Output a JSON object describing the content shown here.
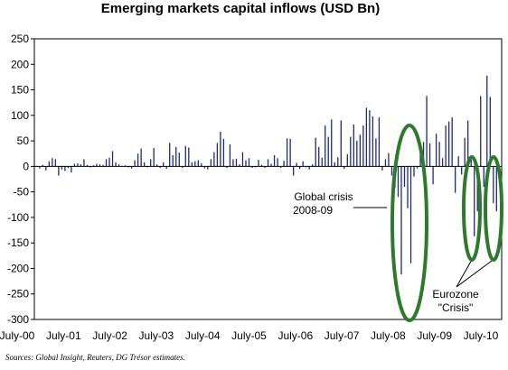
{
  "chart_data": {
    "type": "bar",
    "title": "Emerging markets capital inflows (USD Bn)",
    "source": "Sources: Global Insight, Reuters, DG Trésor estimates.",
    "ylim": [
      -300,
      250
    ],
    "yticks": [
      250,
      200,
      150,
      100,
      50,
      0,
      -50,
      -100,
      -150,
      -200,
      -250,
      -300
    ],
    "xlabels": [
      "July-00",
      "July-01",
      "July-02",
      "July-03",
      "July-04",
      "July-05",
      "July-06",
      "July-07",
      "July-08",
      "July-09",
      "July-10"
    ],
    "period_start": "2000-07",
    "period_step": "week",
    "bar_color": "#1f2a7a",
    "values": [
      -4,
      3,
      -8,
      10,
      16,
      14,
      -18,
      -6,
      -9,
      -3,
      -12,
      5,
      6,
      4,
      14,
      3,
      -2,
      2,
      5,
      4,
      3,
      14,
      17,
      30,
      8,
      4,
      1,
      2,
      -2,
      -4,
      12,
      25,
      35,
      8,
      -2,
      14,
      36,
      4,
      -3,
      8,
      -5,
      46,
      22,
      38,
      27,
      -3,
      40,
      37,
      8,
      10,
      12,
      6,
      -4,
      -6,
      14,
      28,
      46,
      68,
      54,
      -3,
      43,
      14,
      15,
      4,
      28,
      12,
      16,
      -3,
      -2,
      13,
      3,
      -3,
      14,
      5,
      22,
      16,
      -3,
      11,
      55,
      54,
      -18,
      7,
      -5,
      10,
      -2,
      -6,
      4,
      56,
      38,
      17,
      80,
      58,
      92,
      8,
      18,
      90,
      -5,
      24,
      58,
      82,
      50,
      62,
      80,
      115,
      110,
      98,
      55,
      96,
      -8,
      14,
      26,
      -18,
      -42,
      -60,
      -212,
      -40,
      -82,
      -190,
      -20,
      -4,
      44,
      48,
      138,
      45,
      -35,
      64,
      48,
      16,
      80,
      88,
      96,
      -52,
      20,
      -16,
      56,
      90,
      14,
      -137,
      -88,
      138,
      -40,
      178,
      136,
      -72,
      -88
    ],
    "annotations": [
      {
        "text_lines": [
          "Global crisis",
          "2008-09"
        ]
      },
      {
        "text_lines": [
          "Eurozone",
          "\"Crisis\""
        ]
      }
    ],
    "ellipse_color": "#2d7a2d"
  }
}
